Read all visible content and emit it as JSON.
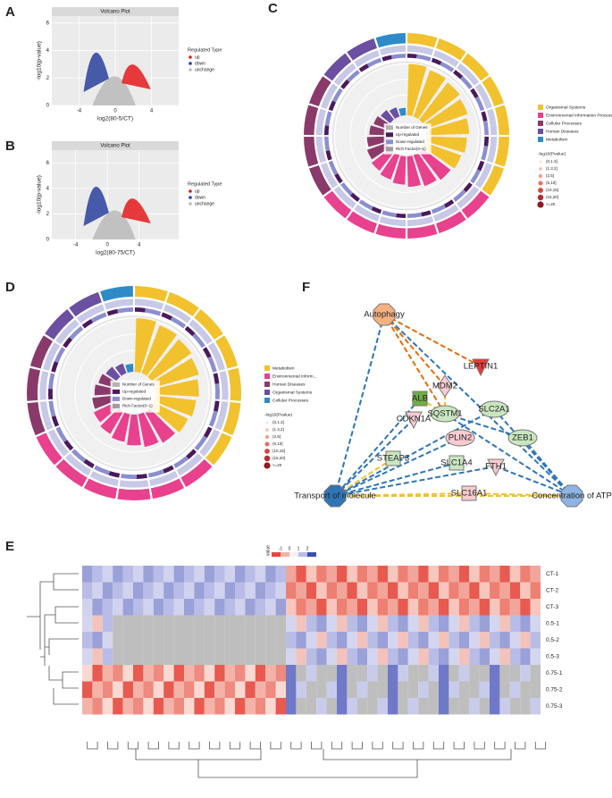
{
  "panels": {
    "A": {
      "letter": "A",
      "title": "Volcano Plot",
      "xlabel": "log2(80-5/CT)",
      "ylabel": "-log10(p-value)",
      "xlim": [
        -7,
        7
      ],
      "ylim": [
        0,
        6.5
      ],
      "xticks": [
        -4,
        0,
        4
      ],
      "yticks": [
        0,
        2,
        4,
        6
      ],
      "legend_title": "Regulated Type",
      "legend": [
        {
          "name": "up",
          "color": "#e41a1c"
        },
        {
          "name": "down",
          "color": "#2a3f9e"
        },
        {
          "name": "unchange",
          "color": "#bdbdbd"
        }
      ]
    },
    "B": {
      "letter": "B",
      "title": "Volcano Plot",
      "xlabel": "log2(80-75/CT)",
      "ylabel": "-log10(p-value)",
      "xlim": [
        -7,
        9
      ],
      "ylim": [
        0,
        7
      ],
      "xticks": [
        -4,
        0,
        4
      ],
      "yticks": [
        0,
        2,
        4,
        6
      ],
      "legend_title": "Regulated Type",
      "legend": [
        {
          "name": "up",
          "color": "#e41a1c"
        },
        {
          "name": "down",
          "color": "#2a3f9e"
        },
        {
          "name": "unchange",
          "color": "#bdbdbd"
        }
      ]
    },
    "C": {
      "letter": "C",
      "categories": [
        {
          "name": "Organismal Systems",
          "color": "#f2c12e"
        },
        {
          "name": "Environmental Information Processing",
          "color": "#e8418e"
        },
        {
          "name": "Cellular Processes",
          "color": "#8a3a6a"
        },
        {
          "name": "Human Diseases",
          "color": "#6b4fa0"
        },
        {
          "name": "Metabolism",
          "color": "#2e8bc8"
        }
      ],
      "center_legend": [
        "Number of Genes",
        "Up-regulated",
        "Down-regulated",
        "Rich Factor(0~1)"
      ],
      "pvalue_title": "-log10(Pvalue)",
      "pvalue_bins": [
        "(0,1.3]",
        "(1.3,2]",
        "(2,5]",
        "(5,10]",
        "(10,15]",
        "(15,20]",
        ">=20"
      ]
    },
    "D": {
      "letter": "D",
      "categories": [
        {
          "name": "Metabolism",
          "color": "#f2c12e"
        },
        {
          "name": "Environmental Inform...",
          "color": "#e8418e"
        },
        {
          "name": "Human Diseases",
          "color": "#8a3a6a"
        },
        {
          "name": "Organismal Systems",
          "color": "#6b4fa0"
        },
        {
          "name": "Cellular Processes",
          "color": "#2e8bc8"
        }
      ],
      "center_legend": [
        "Number of Genes",
        "Up-regulated",
        "Down-regulated",
        "Rich Factor(0~1)"
      ],
      "pvalue_title": "-log10(Pvalue)",
      "pvalue_bins": [
        "(0,1.3]",
        "(1.3,2]",
        "(2,5]",
        "(5,10]",
        "(10,15]",
        "(15,20]",
        ">=20"
      ]
    },
    "F": {
      "letter": "F",
      "nodes": [
        "Autophagy",
        "LEPTIN1",
        "MDM2",
        "ALB",
        "SQSTM1",
        "SLC2A1",
        "CDKN1A",
        "PLIN2",
        "ZEB1",
        "STEAP3",
        "SLC1A4",
        "FTH1",
        "SLC16A1",
        "Transport of molecule",
        "Concentration of ATP"
      ]
    },
    "E": {
      "letter": "E",
      "legend_title": "value",
      "legend_ticks": [
        "-1",
        "0",
        "1",
        "2"
      ],
      "rows": [
        "CT-1",
        "CT-2",
        "CT-3",
        "0.5-1",
        "0.5-2",
        "0.5-3",
        "0.75-1",
        "0.75-2",
        "0.75-3"
      ]
    }
  }
}
